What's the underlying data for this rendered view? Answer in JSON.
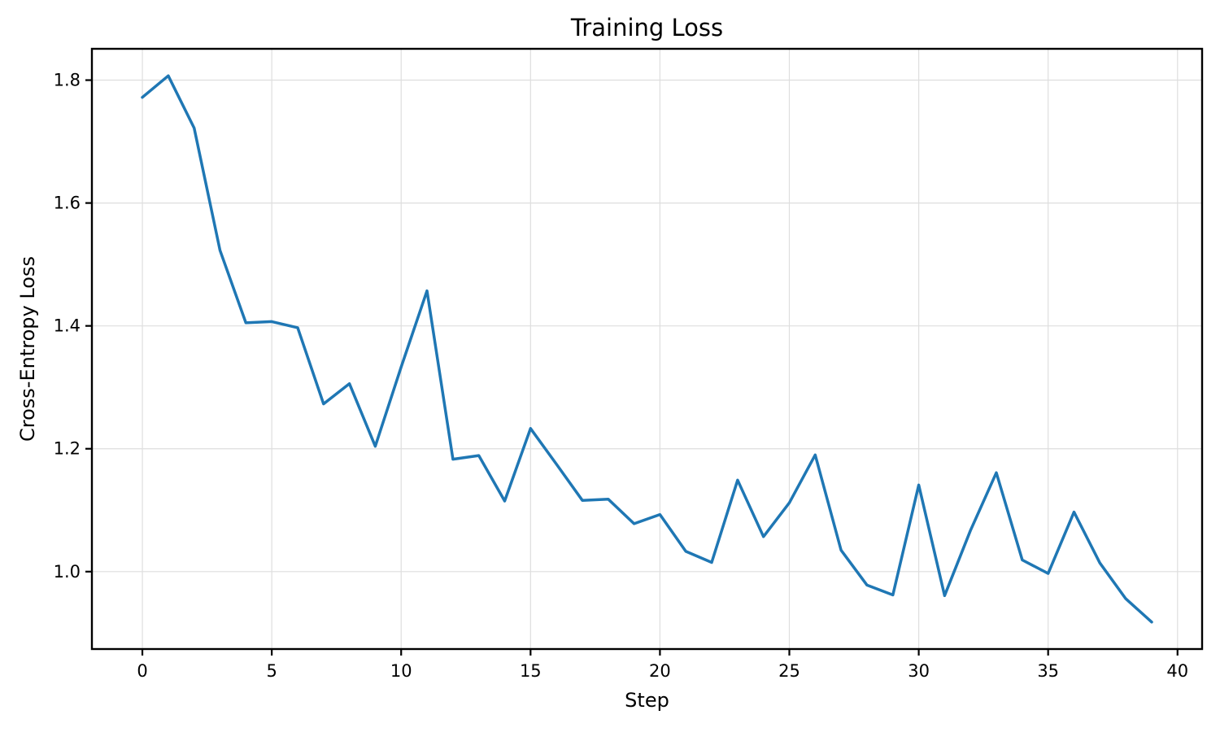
{
  "chart_data": {
    "type": "line",
    "title": "Training Loss",
    "xlabel": "Step",
    "ylabel": "Cross-Entropy Loss",
    "series_name": "cross-entropy-loss",
    "line_color": "#1f77b4",
    "grid": true,
    "legend": "none",
    "x": [
      0,
      1,
      2,
      3,
      4,
      5,
      6,
      7,
      8,
      9,
      10,
      11,
      12,
      13,
      14,
      15,
      16,
      17,
      18,
      19,
      20,
      21,
      22,
      23,
      24,
      25,
      26,
      27,
      28,
      29,
      30,
      31,
      32,
      33,
      34,
      35,
      36,
      37,
      38,
      39
    ],
    "values": [
      1.772,
      1.807,
      1.722,
      1.523,
      1.405,
      1.407,
      1.397,
      1.273,
      1.306,
      1.204,
      1.333,
      1.457,
      1.183,
      1.189,
      1.115,
      1.233,
      1.175,
      1.116,
      1.118,
      1.078,
      1.093,
      1.033,
      1.015,
      1.149,
      1.057,
      1.112,
      1.19,
      1.035,
      0.978,
      0.962,
      1.141,
      0.961,
      1.067,
      1.161,
      1.019,
      0.997,
      1.097,
      1.014,
      0.956,
      0.918
    ],
    "xticks": [
      0,
      5,
      10,
      15,
      20,
      25,
      30,
      35,
      40
    ],
    "xtick_labels": [
      "0",
      "5",
      "10",
      "15",
      "20",
      "25",
      "30",
      "35",
      "40"
    ],
    "yticks": [
      1.0,
      1.2,
      1.4,
      1.6,
      1.8
    ],
    "ytick_labels": [
      "1.0",
      "1.2",
      "1.4",
      "1.6",
      "1.8"
    ],
    "xlim": [
      -1.95,
      40.95
    ],
    "ylim": [
      0.874,
      1.851
    ]
  }
}
